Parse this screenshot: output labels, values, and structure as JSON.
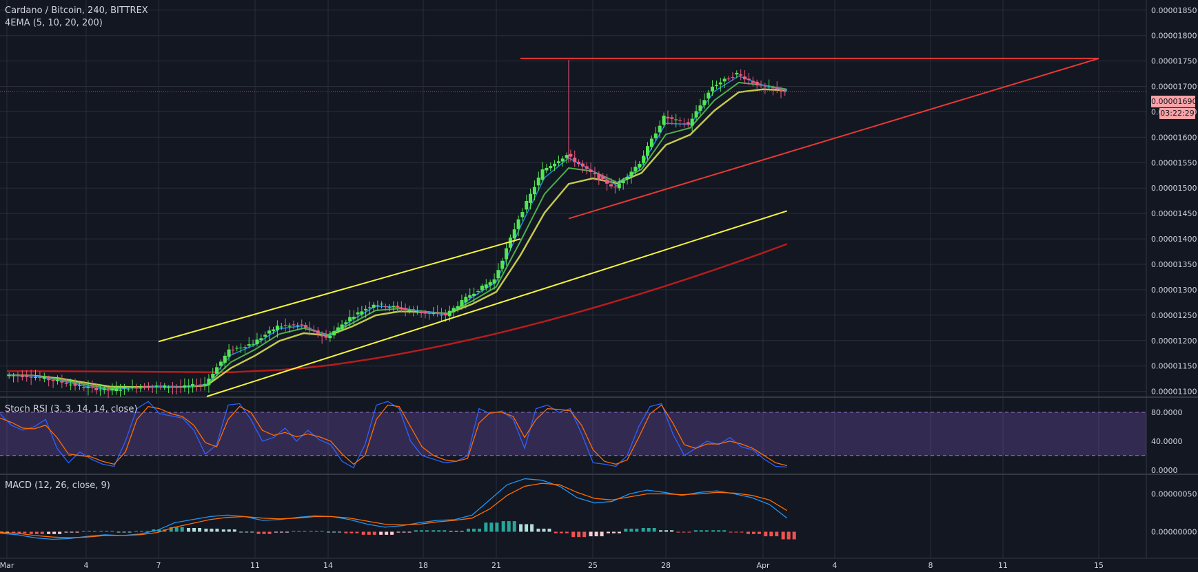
{
  "header": {
    "symbol_line": "Cardano / Bitcoin, 240, BITTREX",
    "study_line": "4EMA (5, 10, 20, 200)",
    "stoch_line": "Stoch RSI (3, 3, 14, 14, close)",
    "macd_line": "MACD (12, 26, close, 9)"
  },
  "last_price": {
    "value_label": "0.00001690",
    "countdown": "03:22:29"
  },
  "colors": {
    "background": "#131722",
    "grid": "#2a2e39",
    "up": "#26a69a",
    "down": "#ef5350",
    "candle_up": "#53e653",
    "candle_down": "#f05a7e",
    "ema5": "#1e88e5",
    "ema10": "#4caf50",
    "ema20": "#c3ca4e",
    "ema200": "#b71c1c",
    "channel": "#f5f53d",
    "resistance": "#e53935",
    "stoch_k": "#2962ff",
    "stoch_d": "#ff6d00",
    "stoch_band": "#7e57c2",
    "macd_line": "#2196f3",
    "signal_line": "#ff6d00"
  },
  "chart_data": [
    {
      "type": "candlestick",
      "panel": "price",
      "title": "Cardano / Bitcoin, 240, BITTREX",
      "x_tick_labels": [
        "Mar",
        "4",
        "7",
        "11",
        "14",
        "18",
        "21",
        "25",
        "28",
        "Apr",
        "4",
        "8",
        "11",
        "15"
      ],
      "y_tick_labels": [
        "0.00001850",
        "0.00001800",
        "0.00001750",
        "0.00001700",
        "0.00001650",
        "0.00001600",
        "0.00001550",
        "0.00001500",
        "0.00001450",
        "0.00001400",
        "0.00001350",
        "0.00001300",
        "0.00001250",
        "0.00001200",
        "0.00001150",
        "0.00001100"
      ],
      "ylim": [
        1.09e-05,
        1.87e-05
      ],
      "grid": true,
      "last_price": 1.69e-05,
      "series_notes": [
        "EMA 5",
        "EMA 10",
        "EMA 20",
        "EMA 200"
      ],
      "close_path": [
        [
          "Mar 1",
          1.132e-05
        ],
        [
          "Mar 2",
          1.13e-05
        ],
        [
          "Mar 3",
          1.12e-05
        ],
        [
          "Mar 4",
          1.108e-05
        ],
        [
          "Mar 5",
          1.102e-05
        ],
        [
          "Mar 6",
          1.108e-05
        ],
        [
          "Mar 7",
          1.11e-05
        ],
        [
          "Mar 8",
          1.108e-05
        ],
        [
          "Mar 9",
          1.115e-05
        ],
        [
          "Mar 10",
          1.18e-05
        ],
        [
          "Mar 11",
          1.195e-05
        ],
        [
          "Mar 12",
          1.228e-05
        ],
        [
          "Mar 13",
          1.23e-05
        ],
        [
          "Mar 14",
          1.205e-05
        ],
        [
          "Mar 15",
          1.245e-05
        ],
        [
          "Mar 16",
          1.272e-05
        ],
        [
          "Mar 17",
          1.265e-05
        ],
        [
          "Mar 18",
          1.255e-05
        ],
        [
          "Mar 19",
          1.25e-05
        ],
        [
          "Mar 20",
          1.29e-05
        ],
        [
          "Mar 21",
          1.32e-05
        ],
        [
          "Mar 22",
          1.44e-05
        ],
        [
          "Mar 23",
          1.535e-05
        ],
        [
          "Mar 24",
          1.565e-05
        ],
        [
          "Mar 25",
          1.53e-05
        ],
        [
          "Mar 26",
          1.5e-05
        ],
        [
          "Mar 27",
          1.55e-05
        ],
        [
          "Mar 28",
          1.64e-05
        ],
        [
          "Mar 29",
          1.625e-05
        ],
        [
          "Mar 30",
          1.7e-05
        ],
        [
          "Mar 31",
          1.725e-05
        ],
        [
          "Apr 1",
          1.7e-05
        ],
        [
          "Apr 2",
          1.69e-05
        ]
      ],
      "trendlines": [
        {
          "name": "channel-upper",
          "from": [
            "Mar 7",
            1.198e-05
          ],
          "to": [
            "Mar 22",
            1.4e-05
          ]
        },
        {
          "name": "channel-lower",
          "from": [
            "Mar 9",
            1.09e-05
          ],
          "to": [
            "Apr 2",
            1.455e-05
          ]
        },
        {
          "name": "resistance",
          "from": [
            "Mar 22",
            1.755e-05
          ],
          "to": [
            "Apr 15",
            1.755e-05
          ]
        },
        {
          "name": "rising-support",
          "from": [
            "Mar 24",
            1.44e-05
          ],
          "to": [
            "Apr 15",
            1.755e-05
          ]
        }
      ]
    },
    {
      "type": "line",
      "panel": "stoch_rsi",
      "title": "Stoch RSI (3, 3, 14, 14, close)",
      "y_tick_labels": [
        "80.0000",
        "40.0000",
        "0.0000"
      ],
      "ylim": [
        -5,
        100
      ],
      "bands": [
        20,
        80
      ],
      "series": [
        {
          "values": [
            78,
            62,
            55,
            60,
            70,
            30,
            10,
            25,
            15,
            8,
            5,
            40,
            85,
            95,
            78,
            75,
            72,
            55,
            22,
            35,
            90,
            92,
            70,
            40,
            45,
            58,
            40,
            55,
            42,
            35,
            12,
            3,
            35,
            90,
            95,
            85,
            40,
            20,
            15,
            10,
            12,
            20,
            85,
            78,
            82,
            70,
            30,
            85,
            90,
            80,
            85,
            50,
            10,
            8,
            5,
            20,
            60,
            88,
            92,
            50,
            20,
            30,
            40,
            35,
            45,
            32,
            28,
            15,
            5,
            4
          ]
        },
        {
          "values": [
            72,
            66,
            58,
            57,
            62,
            45,
            22,
            20,
            18,
            12,
            8,
            25,
            70,
            88,
            85,
            78,
            74,
            62,
            38,
            32,
            70,
            88,
            80,
            55,
            48,
            52,
            46,
            50,
            46,
            40,
            22,
            8,
            20,
            70,
            90,
            88,
            60,
            32,
            20,
            14,
            12,
            16,
            65,
            80,
            80,
            74,
            45,
            70,
            85,
            84,
            82,
            62,
            28,
            12,
            8,
            14,
            45,
            78,
            90,
            65,
            35,
            30,
            36,
            36,
            40,
            36,
            30,
            20,
            10,
            6
          ]
        }
      ]
    },
    {
      "type": "bar",
      "panel": "macd",
      "title": "MACD (12, 26, close, 9)",
      "y_tick_labels": [
        "0.00000050",
        "0.00000000"
      ],
      "ylim": [
        -3.5e-07,
        7.5e-07
      ],
      "series": [
        {
          "values": [
            -2e-08,
            -4e-08,
            -8e-08,
            -1e-07,
            -9e-08,
            -6e-08,
            -4e-08,
            -5e-08,
            -3e-08,
            2e-08,
            1.2e-07,
            1.6e-07,
            2e-07,
            2.2e-07,
            2e-07,
            1.5e-07,
            1.6e-07,
            1.9e-07,
            2.1e-07,
            2e-07,
            1.6e-07,
            1e-07,
            6e-08,
            8e-08,
            1.2e-07,
            1.5e-07,
            1.6e-07,
            2.2e-07,
            4.2e-07,
            6.2e-07,
            7e-07,
            6.8e-07,
            6e-07,
            4.5e-07,
            3.8e-07,
            4e-07,
            5e-07,
            5.5e-07,
            5.2e-07,
            4.8e-07,
            5.2e-07,
            5.4e-07,
            5e-07,
            4.5e-07,
            3.6e-07,
            1.8e-07
          ]
        },
        {
          "values": [
            -1e-08,
            -2e-08,
            -5e-08,
            -7e-08,
            -8e-08,
            -7e-08,
            -5e-08,
            -5e-08,
            -4e-08,
            -1e-08,
            6e-08,
            1.1e-07,
            1.6e-07,
            1.9e-07,
            2e-07,
            1.8e-07,
            1.7e-07,
            1.8e-07,
            2e-07,
            2e-07,
            1.8e-07,
            1.4e-07,
            1e-07,
            9e-08,
            1e-07,
            1.3e-07,
            1.5e-07,
            1.8e-07,
            3e-07,
            4.8e-07,
            6e-07,
            6.4e-07,
            6.2e-07,
            5.2e-07,
            4.4e-07,
            4.2e-07,
            4.6e-07,
            5e-07,
            5e-07,
            4.9e-07,
            5e-07,
            5.2e-07,
            5.1e-07,
            4.8e-07,
            4.2e-07,
            2.8e-07
          ]
        },
        {
          "values": [
            -1e-08,
            -2e-08,
            -3e-08,
            -3e-08,
            -1e-08,
            1e-08,
            1e-08,
            0,
            1e-08,
            3e-08,
            6e-08,
            5e-08,
            4e-08,
            3e-08,
            0,
            -3e-08,
            -1e-08,
            1e-08,
            1e-08,
            0,
            -2e-08,
            -4e-08,
            -4e-08,
            -1e-08,
            2e-08,
            2e-08,
            1e-08,
            4e-08,
            1.2e-07,
            1.4e-07,
            1e-07,
            4e-08,
            -2e-08,
            -7e-08,
            -6e-08,
            -2e-08,
            4e-08,
            5e-08,
            2e-08,
            -1e-08,
            2e-08,
            2e-08,
            -1e-08,
            -3e-08,
            -6e-08,
            -1e-07
          ]
        }
      ]
    }
  ]
}
